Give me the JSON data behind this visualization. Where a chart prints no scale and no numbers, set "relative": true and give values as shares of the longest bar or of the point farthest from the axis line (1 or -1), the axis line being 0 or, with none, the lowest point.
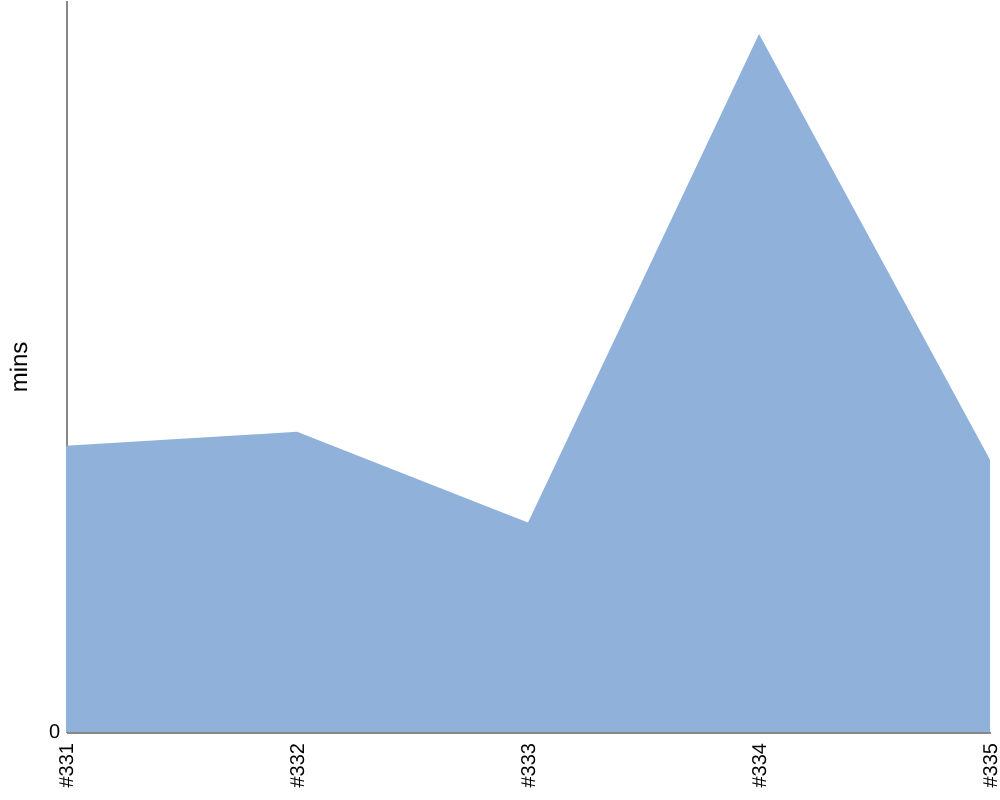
{
  "chart_data": {
    "type": "area",
    "ylabel": "mins",
    "relative": true,
    "categories": [
      "#331",
      "#332",
      "#333",
      "#334",
      "#335"
    ],
    "values": [
      0.41,
      0.43,
      0.3,
      1,
      0.39
    ],
    "color": "#8fb1da",
    "annotations": [
      "0"
    ],
    "grid": false
  }
}
